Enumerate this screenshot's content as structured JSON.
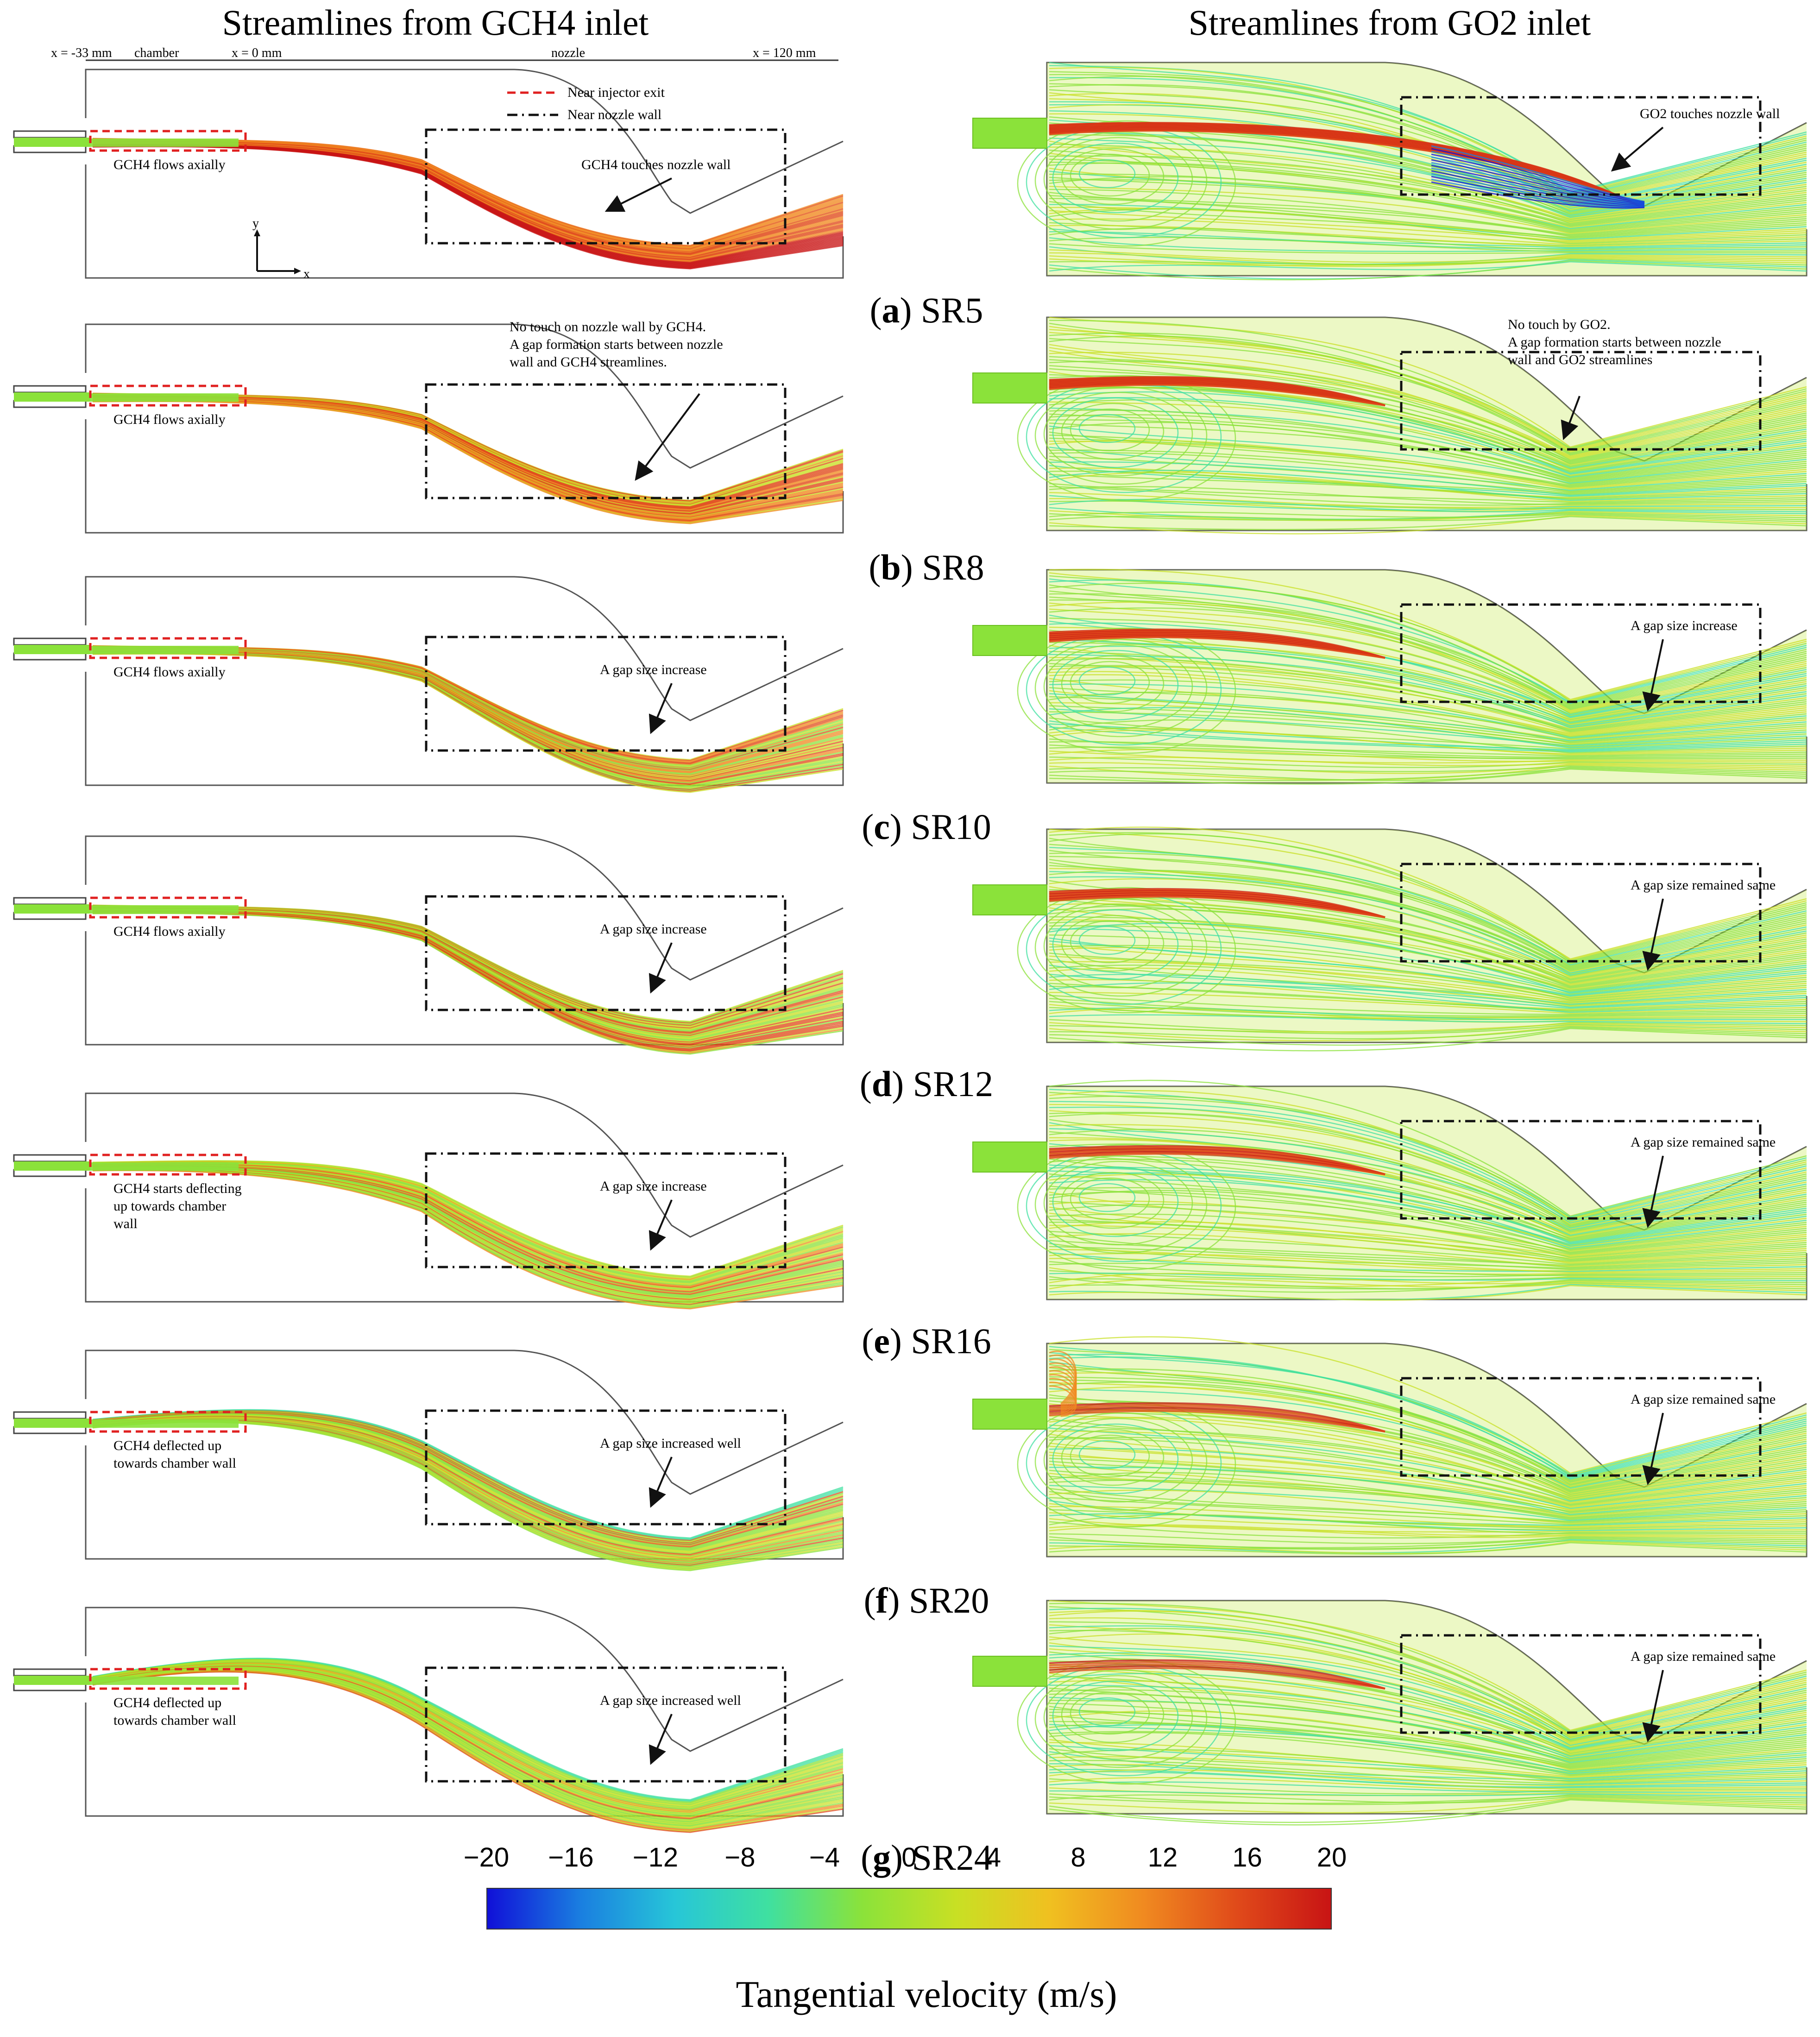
{
  "titles": {
    "left": "Streamlines from GCH4 inlet",
    "right": "Streamlines from GO2 inlet"
  },
  "header_labels": {
    "x_start": "x = -33 mm",
    "chamber": "chamber",
    "x_zero": "x = 0 mm",
    "nozzle": "nozzle",
    "x_end": "x = 120 mm"
  },
  "legend": {
    "red": "Near injector exit",
    "black": "Near nozzle wall"
  },
  "axis": {
    "y": "y",
    "x": "x"
  },
  "rows": [
    {
      "caption_letter": "a",
      "caption_rest": ") SR5",
      "left_box_note": [
        "GCH4 flows axially"
      ],
      "left_gap_note": [
        "GCH4 touches nozzle wall"
      ],
      "right_gap_note": [
        "GO2 touches nozzle wall"
      ]
    },
    {
      "caption_letter": "b",
      "caption_rest": ") SR8",
      "left_box_note": [
        "GCH4 flows axially"
      ],
      "left_gap_note": [
        "No touch on nozzle wall by GCH4.",
        "A gap formation starts between nozzle",
        "wall and GCH4 streamlines."
      ],
      "right_gap_note": [
        "No touch by GO2.",
        "A gap formation starts between nozzle",
        "wall and GO2 streamlines"
      ]
    },
    {
      "caption_letter": "c",
      "caption_rest": ") SR10",
      "left_box_note": [
        "GCH4 flows axially"
      ],
      "left_gap_note": [
        "A gap size increase"
      ],
      "right_gap_note": [
        "A gap size increase"
      ]
    },
    {
      "caption_letter": "d",
      "caption_rest": ") SR12",
      "left_box_note": [
        "GCH4 flows axially"
      ],
      "left_gap_note": [
        "A gap size increase"
      ],
      "right_gap_note": [
        "A gap size remained same"
      ]
    },
    {
      "caption_letter": "e",
      "caption_rest": ") SR16",
      "left_box_note": [
        "GCH4 starts deflecting",
        "up towards chamber",
        "wall"
      ],
      "left_gap_note": [
        "A gap size increase"
      ],
      "right_gap_note": [
        "A gap size remained same"
      ]
    },
    {
      "caption_letter": "f",
      "caption_rest": ") SR20",
      "left_box_note": [
        "GCH4 deflected up",
        "towards chamber wall"
      ],
      "left_gap_note": [
        "A gap size increased well"
      ],
      "right_gap_note": [
        "A gap size remained same"
      ]
    },
    {
      "caption_letter": "g",
      "caption_rest": ") SR24",
      "left_box_note": [
        "GCH4 deflected up",
        "towards chamber wall"
      ],
      "left_gap_note": [
        "A gap size increased well"
      ],
      "right_gap_note": [
        "A gap size remained same"
      ]
    }
  ],
  "colorbar": {
    "label": "Tangential velocity (m/s)",
    "ticks": [
      "−20",
      "−16",
      "−12",
      "−8",
      "−4",
      "0",
      "4",
      "8",
      "12",
      "16",
      "20"
    ],
    "min": -20,
    "max": 20,
    "colors": [
      "#1010d8",
      "#1a7fe0",
      "#27c6d8",
      "#3fe0a0",
      "#8be23a",
      "#c8e024",
      "#f0c020",
      "#f08a20",
      "#e04a1a",
      "#c81414"
    ]
  }
}
